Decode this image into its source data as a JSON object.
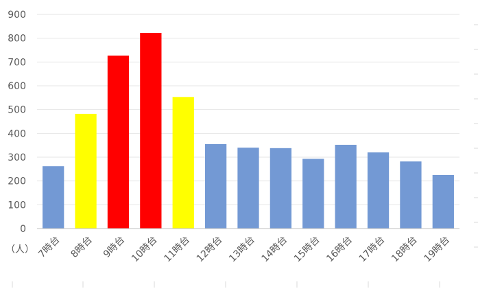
{
  "chart_data": {
    "type": "bar",
    "title": "",
    "xlabel": "",
    "ylabel": "（人）",
    "categories": [
      "7時台",
      "8時台",
      "9時台",
      "10時台",
      "11時台",
      "12時台",
      "13時台",
      "14時台",
      "15時台",
      "16時台",
      "17時台",
      "18時台",
      "19時台"
    ],
    "values": [
      262,
      482,
      727,
      822,
      553,
      355,
      340,
      338,
      293,
      352,
      320,
      282,
      225
    ],
    "bar_colors": [
      "#7399d4",
      "#ffff00",
      "#ff0000",
      "#ff0000",
      "#ffff00",
      "#7399d4",
      "#7399d4",
      "#7399d4",
      "#7399d4",
      "#7399d4",
      "#7399d4",
      "#7399d4",
      "#7399d4"
    ],
    "ylim": [
      0,
      900
    ],
    "yticks": [
      0,
      100,
      200,
      300,
      400,
      500,
      600,
      700,
      800,
      900
    ],
    "grid": true,
    "legend": "none"
  },
  "colors": {
    "grid": "#e6e6e6",
    "axis": "#bfbfbf",
    "tick_label": "#595959"
  }
}
